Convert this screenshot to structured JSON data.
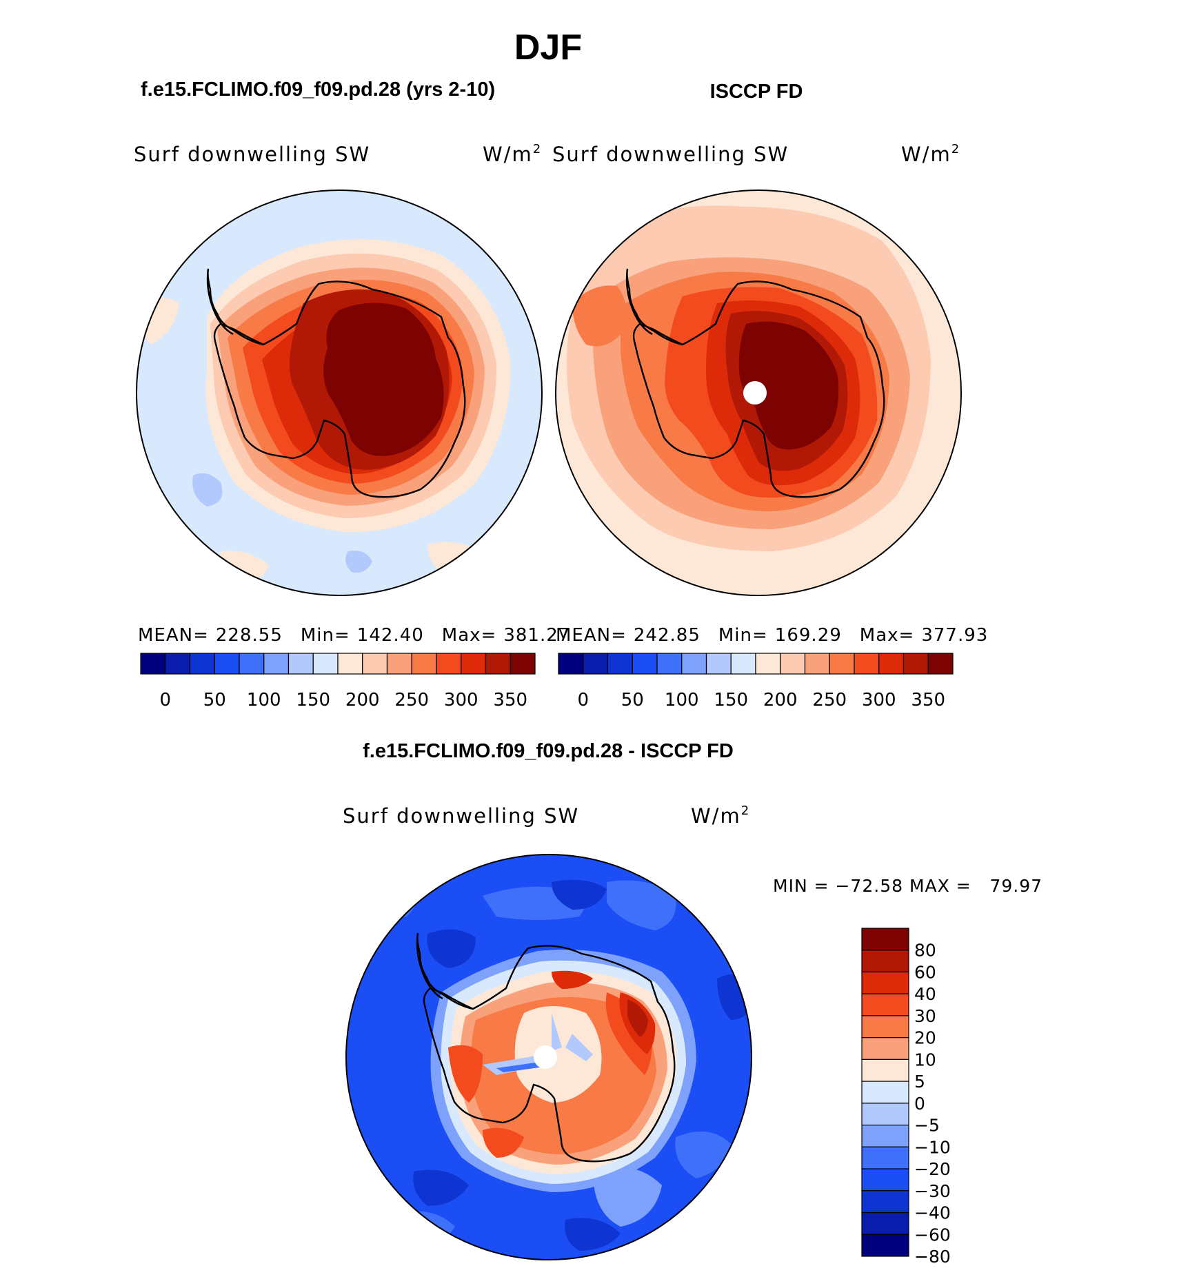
{
  "page": {
    "title": "DJF",
    "bottom_title": "f.e15.FCLIMO.f09_f09.pd.28 - ISCCP FD"
  },
  "colors": {
    "sequential": [
      "#00007f",
      "#0a1cab",
      "#0e35d2",
      "#1b4ff5",
      "#3e70fa",
      "#7ea2fb",
      "#b1c9fd",
      "#d8e8fd",
      "#fde8d7",
      "#fccbb1",
      "#f9a17a",
      "#f77a47",
      "#f34b1e",
      "#dd2a08",
      "#b11906",
      "#7d0302"
    ],
    "diverging": [
      "#7d0302",
      "#b11906",
      "#dd2a08",
      "#f34b1e",
      "#f77a47",
      "#f9a17a",
      "#fde8d7",
      "#d8e8fd",
      "#b1c9fd",
      "#7ea2fb",
      "#3e70fa",
      "#1b4ff5",
      "#0e35d2",
      "#0a1cab",
      "#00007f"
    ]
  },
  "panels": [
    {
      "title": "f.e15.FCLIMO.f09_f09.pd.28 (yrs 2-10)",
      "field_label": "Surf downwelling SW",
      "units_label": "W/m",
      "units_sup": "2",
      "stats": {
        "mean_label": "MEAN=",
        "mean": "228.55",
        "min_label": "Min=",
        "min": "142.40",
        "max_label": "Max=",
        "max": "381.27"
      },
      "colorbar_ticks": [
        "0",
        "50",
        "100",
        "150",
        "200",
        "250",
        "300",
        "350"
      ]
    },
    {
      "title": "ISCCP FD",
      "field_label": "Surf downwelling SW",
      "units_label": "W/m",
      "units_sup": "2",
      "stats": {
        "mean_label": "MEAN=",
        "mean": "242.85",
        "min_label": "Min=",
        "min": "169.29",
        "max_label": "Max=",
        "max": "377.93"
      },
      "colorbar_ticks": [
        "0",
        "50",
        "100",
        "150",
        "200",
        "250",
        "300",
        "350"
      ]
    },
    {
      "field_label": "Surf downwelling SW",
      "units_label": "W/m",
      "units_sup": "2",
      "stats_text": "MIN = −72.58 MAX =   79.97",
      "colorbar_ticks": [
        "80",
        "60",
        "40",
        "30",
        "20",
        "10",
        "5",
        "0",
        "−5",
        "−10",
        "−20",
        "−30",
        "−40",
        "−60",
        "−80"
      ]
    }
  ],
  "chart_data": [
    {
      "type": "heatmap",
      "projection": "south polar stereographic",
      "title": "f.e15.FCLIMO.f09_f09.pd.28 (yrs 2-10)",
      "variable": "Surf downwelling SW",
      "units": "W/m2",
      "mean": 228.55,
      "min": 142.4,
      "max": 381.27,
      "levels": [
        0,
        25,
        50,
        75,
        100,
        125,
        150,
        175,
        200,
        225,
        250,
        275,
        300,
        325,
        350
      ],
      "bands": [
        {
          "level_index": 7,
          "value": 175
        },
        {
          "level_index": 8,
          "value": 200
        },
        {
          "level_index": 9,
          "value": 225
        },
        {
          "level_index": 10,
          "value": 250
        },
        {
          "level_index": 11,
          "value": 275
        },
        {
          "level_index": 12,
          "value": 300
        },
        {
          "level_index": 13,
          "value": 325
        },
        {
          "level_index": 14,
          "value": 350
        },
        {
          "level_index": 15,
          "value": 375
        }
      ]
    },
    {
      "type": "heatmap",
      "projection": "south polar stereographic",
      "title": "ISCCP FD",
      "variable": "Surf downwelling SW",
      "units": "W/m2",
      "mean": 242.85,
      "min": 169.29,
      "max": 377.93,
      "levels": [
        0,
        25,
        50,
        75,
        100,
        125,
        150,
        175,
        200,
        225,
        250,
        275,
        300,
        325,
        350
      ],
      "bands": [
        {
          "level_index": 8,
          "value": 200
        },
        {
          "level_index": 9,
          "value": 225
        },
        {
          "level_index": 10,
          "value": 250
        },
        {
          "level_index": 11,
          "value": 275
        },
        {
          "level_index": 12,
          "value": 300
        },
        {
          "level_index": 13,
          "value": 325
        },
        {
          "level_index": 14,
          "value": 350
        },
        {
          "level_index": 15,
          "value": 375
        }
      ]
    },
    {
      "type": "heatmap",
      "projection": "south polar stereographic",
      "title": "f.e15.FCLIMO.f09_f09.pd.28 - ISCCP FD",
      "variable": "Surf downwelling SW",
      "units": "W/m2",
      "min": -72.58,
      "max": 79.97,
      "levels": [
        -80,
        -60,
        -40,
        -30,
        -20,
        -10,
        -5,
        0,
        5,
        10,
        20,
        30,
        40,
        60,
        80
      ],
      "bands": [
        {
          "level_index": 3,
          "value": -35
        },
        {
          "level_index": 2,
          "value": -50
        },
        {
          "level_index": 4,
          "value": -25
        },
        {
          "level_index": 6,
          "value": -2
        },
        {
          "level_index": 8,
          "value": 7
        },
        {
          "level_index": 9,
          "value": 15
        },
        {
          "level_index": 10,
          "value": 25
        },
        {
          "level_index": 11,
          "value": 35
        },
        {
          "level_index": 12,
          "value": 50
        },
        {
          "level_index": 13,
          "value": 70
        }
      ]
    }
  ]
}
